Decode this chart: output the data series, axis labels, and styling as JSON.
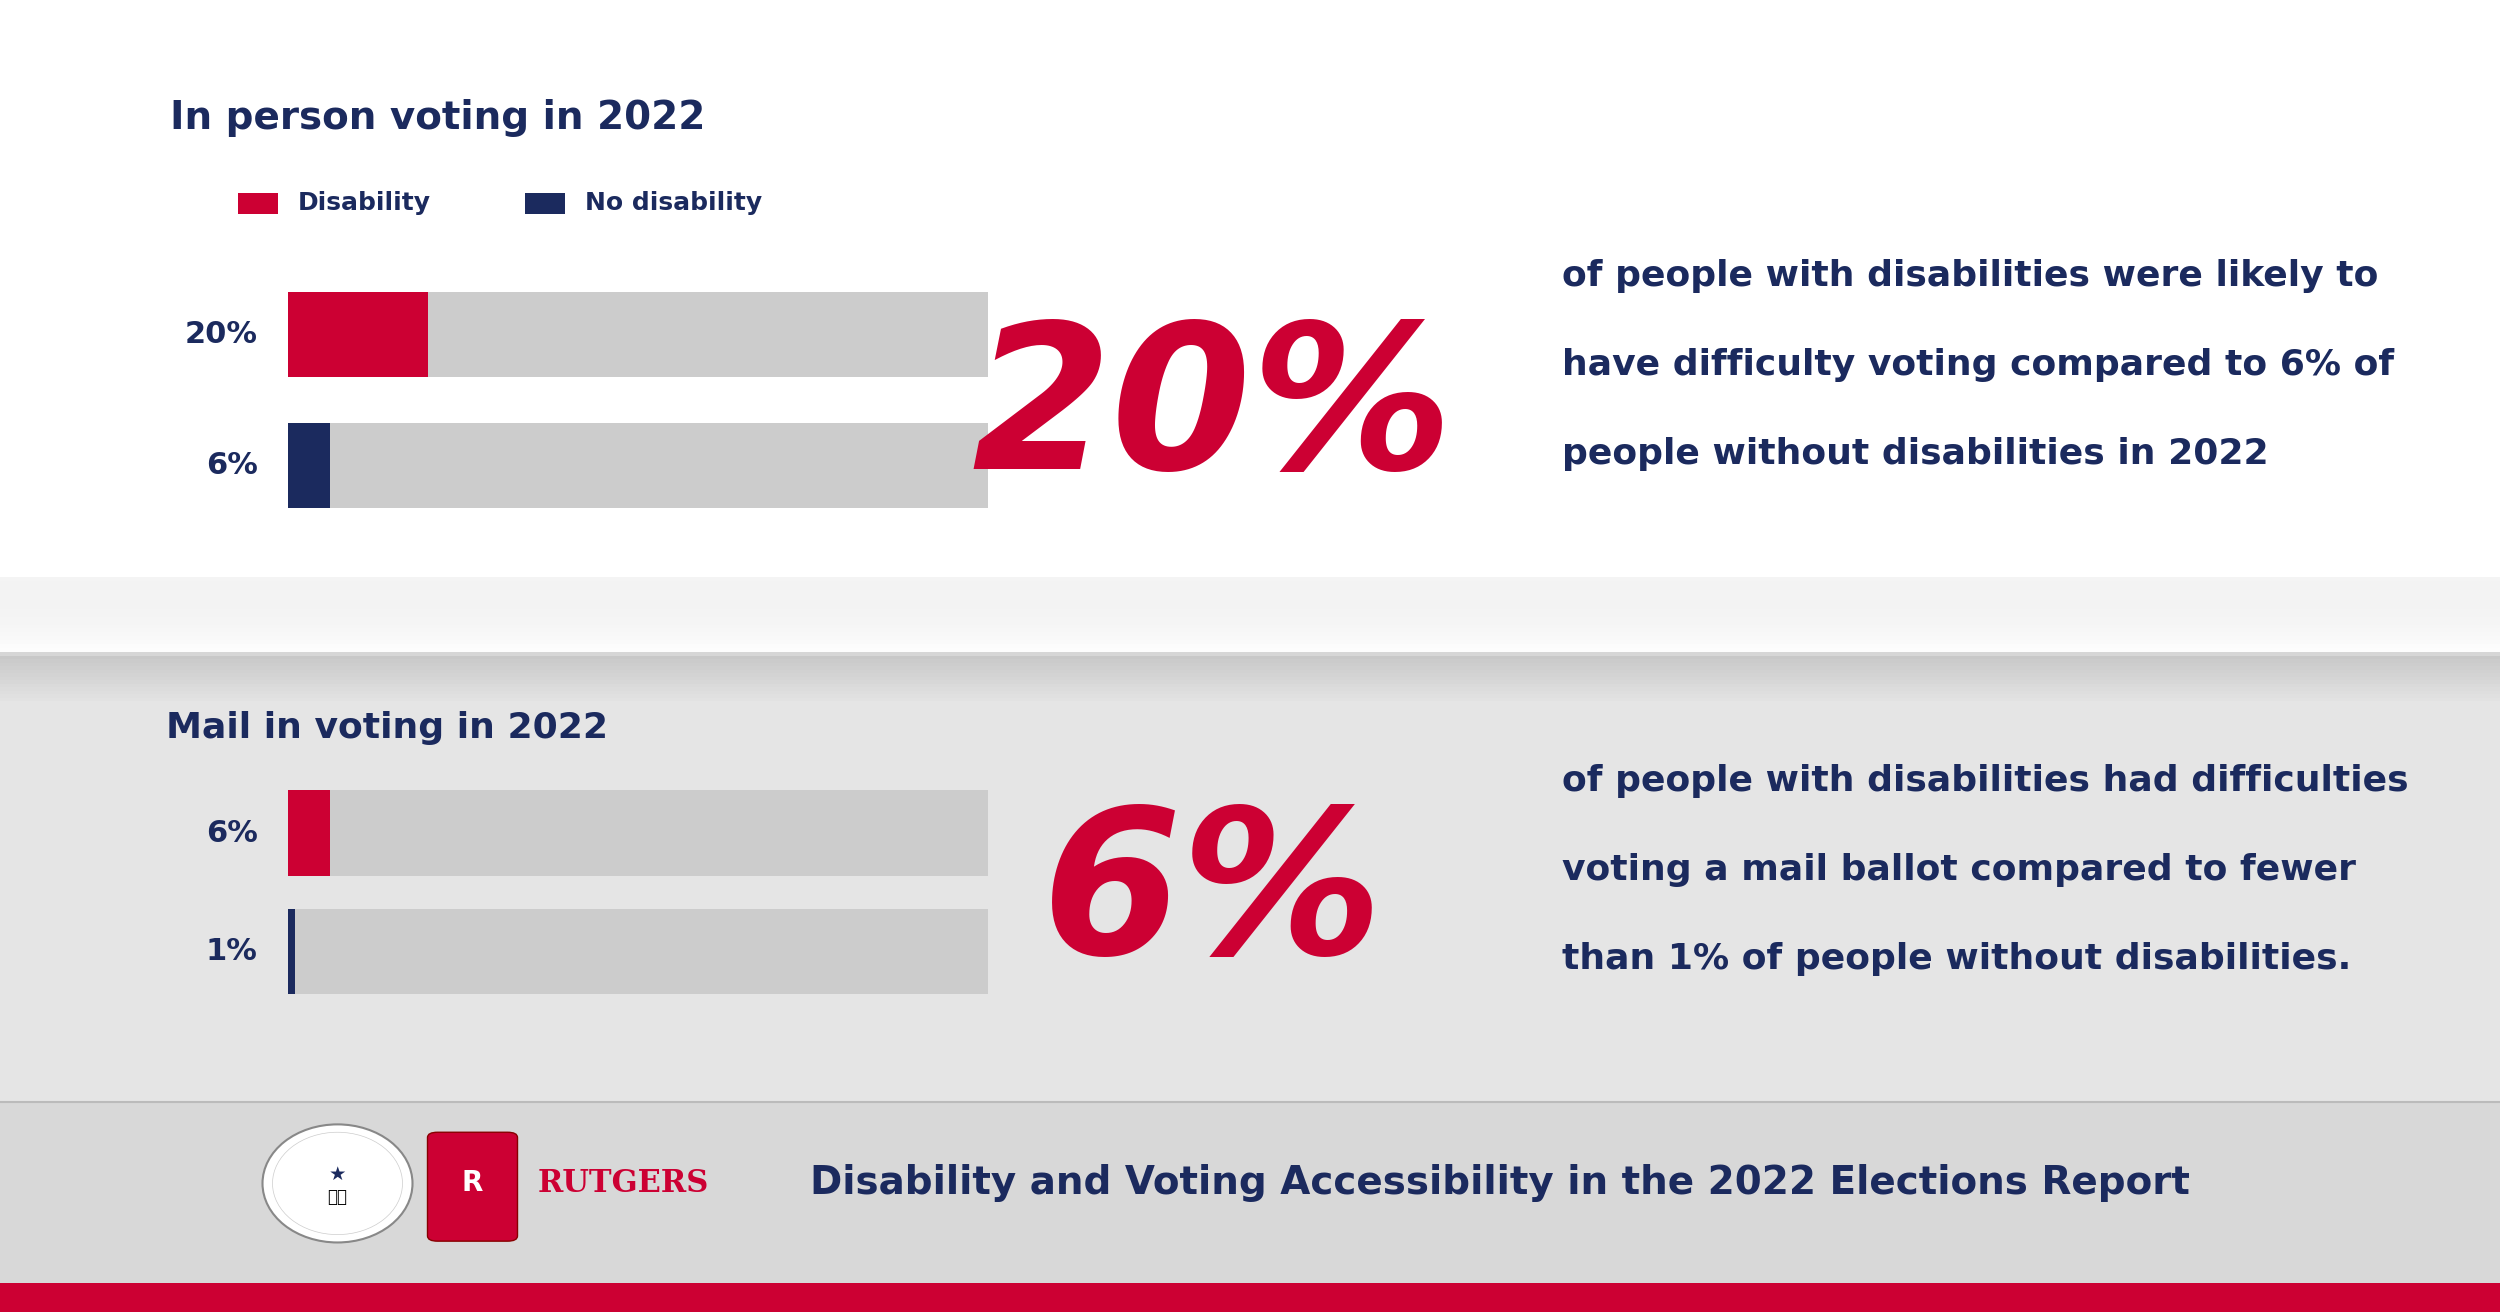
{
  "accent_red": "#CC0033",
  "accent_navy": "#1b2a5e",
  "light_gray_bar": "#cccccc",
  "section1_title": "In person voting in 2022",
  "section2_title": "Mail in voting in 2022",
  "legend_disability": "Disability",
  "legend_no_disability": "No disability",
  "section1_bar1_value": 20,
  "section1_bar2_value": 6,
  "section1_label1": "20%",
  "section1_label2": "6%",
  "section2_bar1_value": 6,
  "section2_bar2_value": 1,
  "section2_label1": "6%",
  "section2_label2": "1%",
  "big_number_1": "20%",
  "big_number_2": "6%",
  "text1_line1": "of people with disabilities were likely to",
  "text1_line2": "have difficulty voting compared to 6% of",
  "text1_line3": "people without disabilities in 2022",
  "text2_line1": "of people with disabilities had difficulties",
  "text2_line2": "voting a mail ballot compared to fewer",
  "text2_line3": "than 1% of people without disabilities.",
  "footer_text": "Disability and Voting Accessibility in the 2022 Elections Report",
  "bg_white": "#ffffff",
  "bg_light_gray": "#e8e8e8",
  "bg_footer": "#dcdcdc",
  "divider_color": "#c8c8c8"
}
